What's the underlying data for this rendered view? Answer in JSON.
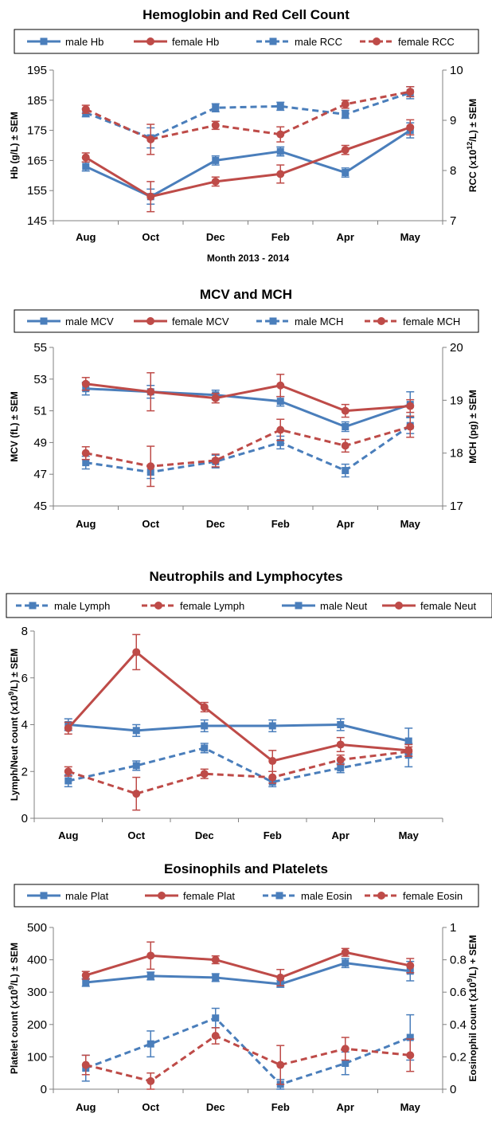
{
  "colors": {
    "male": "#4a7ebb",
    "female": "#be4b48"
  },
  "chart_data": [
    {
      "type": "line",
      "title": "Hemoglobin and Red Cell Count",
      "xlabel": "Month 2013 - 2014",
      "ylabel_parts": [
        {
          "t": "Hb (g/L) ± SEM"
        }
      ],
      "y2label_parts": [
        {
          "t": "RCC (x10"
        },
        {
          "t": "12",
          "sup": true
        },
        {
          "t": "/L) ± SEM"
        }
      ],
      "categories": [
        "Aug",
        "Oct",
        "Dec",
        "Feb",
        "Apr",
        "May"
      ],
      "ylim": [
        145,
        195
      ],
      "yticks": [
        145,
        155,
        165,
        175,
        185,
        195
      ],
      "y2lim": [
        7,
        10
      ],
      "y2ticks": [
        7,
        8,
        9,
        10
      ],
      "legend": "top",
      "series": [
        {
          "name": "male Hb",
          "sex": "male",
          "dashed": false,
          "marker": "square",
          "axis": "left",
          "values": [
            163,
            153,
            165,
            168,
            161,
            175
          ],
          "errors": [
            1.5,
            2.5,
            1.5,
            1.5,
            1.5,
            2.5
          ]
        },
        {
          "name": "female Hb",
          "sex": "female",
          "dashed": false,
          "marker": "circle",
          "axis": "left",
          "values": [
            166,
            153,
            158,
            160.5,
            168.5,
            176
          ],
          "errors": [
            1.5,
            5,
            1.5,
            3,
            1.5,
            2.5
          ]
        },
        {
          "name": "male RCC",
          "sex": "male",
          "dashed": true,
          "marker": "square",
          "axis": "right",
          "values": [
            9.15,
            8.65,
            9.25,
            9.28,
            9.12,
            9.55
          ],
          "errors": [
            0.08,
            0.2,
            0.08,
            0.08,
            0.08,
            0.12
          ]
        },
        {
          "name": "female RCC",
          "sex": "female",
          "dashed": true,
          "marker": "circle",
          "axis": "right",
          "values": [
            9.22,
            8.62,
            8.9,
            8.72,
            9.32,
            9.57
          ],
          "errors": [
            0.08,
            0.3,
            0.08,
            0.15,
            0.08,
            0.1
          ]
        }
      ]
    },
    {
      "type": "line",
      "title": "MCV and MCH",
      "xlabel": "",
      "ylabel_parts": [
        {
          "t": "MCV  (fL) ± SEM"
        }
      ],
      "y2label_parts": [
        {
          "t": "MCH (pg) ± SEM"
        }
      ],
      "categories": [
        "Aug",
        "Oct",
        "Dec",
        "Feb",
        "Apr",
        "May"
      ],
      "ylim": [
        45,
        55
      ],
      "yticks": [
        45,
        47,
        49,
        51,
        53,
        55
      ],
      "y2lim": [
        17,
        20
      ],
      "y2ticks": [
        17,
        18,
        19,
        20
      ],
      "legend": "top",
      "series": [
        {
          "name": "male MCV",
          "sex": "male",
          "dashed": false,
          "marker": "square",
          "axis": "left",
          "values": [
            52.4,
            52.2,
            52.0,
            51.6,
            50.0,
            51.4
          ],
          "errors": [
            0.4,
            0.4,
            0.3,
            0.3,
            0.3,
            0.8
          ]
        },
        {
          "name": "female MCV",
          "sex": "female",
          "dashed": false,
          "marker": "circle",
          "axis": "left",
          "values": [
            52.7,
            52.2,
            51.8,
            52.6,
            51.0,
            51.3
          ],
          "errors": [
            0.4,
            1.2,
            0.3,
            0.7,
            0.4,
            0.4
          ]
        },
        {
          "name": "male MCH",
          "sex": "male",
          "dashed": true,
          "marker": "square",
          "axis": "right",
          "values": [
            17.82,
            17.64,
            17.84,
            18.2,
            17.67,
            18.52
          ],
          "errors": [
            0.12,
            0.12,
            0.12,
            0.12,
            0.12,
            0.15
          ]
        },
        {
          "name": "female MCH",
          "sex": "female",
          "dashed": true,
          "marker": "circle",
          "axis": "right",
          "values": [
            18.0,
            17.75,
            17.86,
            18.44,
            18.14,
            18.5
          ],
          "errors": [
            0.12,
            0.38,
            0.12,
            0.2,
            0.12,
            0.2
          ]
        }
      ]
    },
    {
      "type": "line",
      "title": "Neutrophils and Lymphocytes",
      "xlabel": "",
      "ylabel_parts": [
        {
          "t": "Lymph/Neut count (x10"
        },
        {
          "t": "9",
          "sup": true
        },
        {
          "t": "/L) ± SEM"
        }
      ],
      "y2label_parts": [],
      "categories": [
        "Aug",
        "Oct",
        "Dec",
        "Feb",
        "Apr",
        "May"
      ],
      "ylim": [
        0,
        8
      ],
      "yticks": [
        0,
        2,
        4,
        6,
        8
      ],
      "legend": "top",
      "series": [
        {
          "name": "male Lymph",
          "sex": "male",
          "dashed": true,
          "marker": "square",
          "axis": "left",
          "values": [
            1.6,
            2.25,
            3.0,
            1.55,
            2.15,
            2.7
          ],
          "errors": [
            0.25,
            0.2,
            0.2,
            0.2,
            0.2,
            0.5
          ]
        },
        {
          "name": "female Lymph",
          "sex": "female",
          "dashed": true,
          "marker": "circle",
          "axis": "left",
          "values": [
            2.0,
            1.05,
            1.9,
            1.75,
            2.5,
            2.85
          ],
          "errors": [
            0.2,
            0.7,
            0.2,
            0.25,
            0.2,
            0.2
          ]
        },
        {
          "name": "male Neut",
          "sex": "male",
          "dashed": false,
          "marker": "square",
          "axis": "left",
          "values": [
            4.0,
            3.75,
            3.95,
            3.95,
            4.0,
            3.3
          ],
          "errors": [
            0.25,
            0.25,
            0.25,
            0.25,
            0.25,
            0.55
          ]
        },
        {
          "name": "female Neut",
          "sex": "female",
          "dashed": false,
          "marker": "circle",
          "axis": "left",
          "values": [
            3.85,
            7.1,
            4.75,
            2.45,
            3.15,
            2.9
          ],
          "errors": [
            0.25,
            0.75,
            0.2,
            0.45,
            0.3,
            0.25
          ]
        }
      ]
    },
    {
      "type": "line",
      "title": "Eosinophils and Platelets",
      "xlabel": "",
      "ylabel_parts": [
        {
          "t": "Platelet count (x10"
        },
        {
          "t": "9",
          "sup": true
        },
        {
          "t": "/L) ± SEM"
        }
      ],
      "y2label_parts": [
        {
          "t": "Eosinophil count (x10"
        },
        {
          "t": "9",
          "sup": true
        },
        {
          "t": "/L) + SEM"
        }
      ],
      "categories": [
        "Aug",
        "Oct",
        "Dec",
        "Feb",
        "Apr",
        "May"
      ],
      "ylim": [
        0,
        500
      ],
      "yticks": [
        0,
        100,
        200,
        300,
        400,
        500
      ],
      "y2lim": [
        0,
        1
      ],
      "y2ticks": [
        0,
        0.2,
        0.4,
        0.6,
        0.8,
        1
      ],
      "legend": "top",
      "series": [
        {
          "name": "male Plat",
          "sex": "male",
          "dashed": false,
          "marker": "square",
          "axis": "left",
          "values": [
            330,
            350,
            345,
            325,
            390,
            365
          ],
          "errors": [
            12,
            12,
            12,
            10,
            14,
            30
          ]
        },
        {
          "name": "female Plat",
          "sex": "female",
          "dashed": false,
          "marker": "circle",
          "axis": "left",
          "values": [
            352,
            413,
            400,
            345,
            423,
            382
          ],
          "errors": [
            12,
            42,
            12,
            25,
            12,
            22
          ]
        },
        {
          "name": "male Eosin",
          "sex": "male",
          "dashed": true,
          "marker": "square",
          "axis": "right",
          "values": [
            0.13,
            0.28,
            0.44,
            0.03,
            0.16,
            0.32
          ],
          "errors": [
            0.08,
            0.08,
            0.06,
            0.03,
            0.07,
            0.14
          ]
        },
        {
          "name": "female Eosin",
          "sex": "female",
          "dashed": true,
          "marker": "circle",
          "axis": "right",
          "values": [
            0.15,
            0.05,
            0.33,
            0.15,
            0.25,
            0.21
          ],
          "errors": [
            0.06,
            0.05,
            0.05,
            0.12,
            0.07,
            0.1
          ]
        }
      ]
    }
  ]
}
